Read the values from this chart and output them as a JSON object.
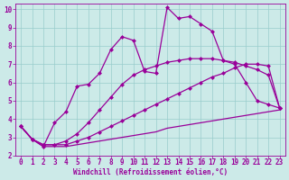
{
  "bg_color": "#cceae8",
  "line_color": "#990099",
  "grid_color": "#99cccc",
  "xlim": [
    -0.5,
    23.5
  ],
  "ylim": [
    2,
    10.3
  ],
  "xticks": [
    0,
    1,
    2,
    3,
    4,
    5,
    6,
    7,
    8,
    9,
    10,
    11,
    12,
    13,
    14,
    15,
    16,
    17,
    18,
    19,
    20,
    21,
    22,
    23
  ],
  "yticks": [
    2,
    3,
    4,
    5,
    6,
    7,
    8,
    9,
    10
  ],
  "xlabel": "Windchill (Refroidissement éolien,°C)",
  "line1_x": [
    0,
    1,
    2,
    3,
    4,
    5,
    6,
    7,
    8,
    9,
    10,
    11,
    12,
    13,
    14,
    15,
    16,
    17,
    18,
    19,
    20,
    21,
    22,
    23
  ],
  "line1_y": [
    3.6,
    2.9,
    2.5,
    2.5,
    2.5,
    2.6,
    2.7,
    2.8,
    2.9,
    3.0,
    3.1,
    3.2,
    3.3,
    3.5,
    3.6,
    3.7,
    3.8,
    3.9,
    4.0,
    4.1,
    4.2,
    4.3,
    4.4,
    4.5
  ],
  "line2_x": [
    0,
    1,
    2,
    3,
    4,
    5,
    6,
    7,
    8,
    9,
    10,
    11,
    12,
    13,
    14,
    15,
    16,
    17,
    18,
    19,
    20,
    21,
    22,
    23
  ],
  "line2_y": [
    3.6,
    2.9,
    2.6,
    2.6,
    2.6,
    2.8,
    3.0,
    3.3,
    3.6,
    3.9,
    4.2,
    4.5,
    4.8,
    5.1,
    5.4,
    5.7,
    6.0,
    6.3,
    6.5,
    6.8,
    7.0,
    7.0,
    6.9,
    4.6
  ],
  "line3_x": [
    0,
    1,
    2,
    3,
    4,
    5,
    6,
    7,
    8,
    9,
    10,
    11,
    12,
    13,
    14,
    15,
    16,
    17,
    18,
    19,
    20,
    21,
    22,
    23
  ],
  "line3_y": [
    3.6,
    2.9,
    2.6,
    2.6,
    2.8,
    3.2,
    3.8,
    4.5,
    5.2,
    5.9,
    6.4,
    6.7,
    6.9,
    7.1,
    7.2,
    7.3,
    7.3,
    7.3,
    7.2,
    7.1,
    6.9,
    6.7,
    6.4,
    4.6
  ],
  "line4_x": [
    0,
    1,
    2,
    3,
    4,
    5,
    6,
    7,
    8,
    9,
    10,
    11,
    12,
    13,
    14,
    15,
    16,
    17,
    18,
    19,
    20,
    21,
    22,
    23
  ],
  "line4_y": [
    3.6,
    2.9,
    2.5,
    3.8,
    4.4,
    5.8,
    5.9,
    6.5,
    7.8,
    8.5,
    8.3,
    6.6,
    6.5,
    10.1,
    9.5,
    9.6,
    9.2,
    8.8,
    7.2,
    7.0,
    6.0,
    5.0,
    4.8,
    4.6
  ],
  "markersize": 2.5,
  "linewidth": 0.9,
  "tick_fontsize": 5.5,
  "xlabel_fontsize": 5.5
}
